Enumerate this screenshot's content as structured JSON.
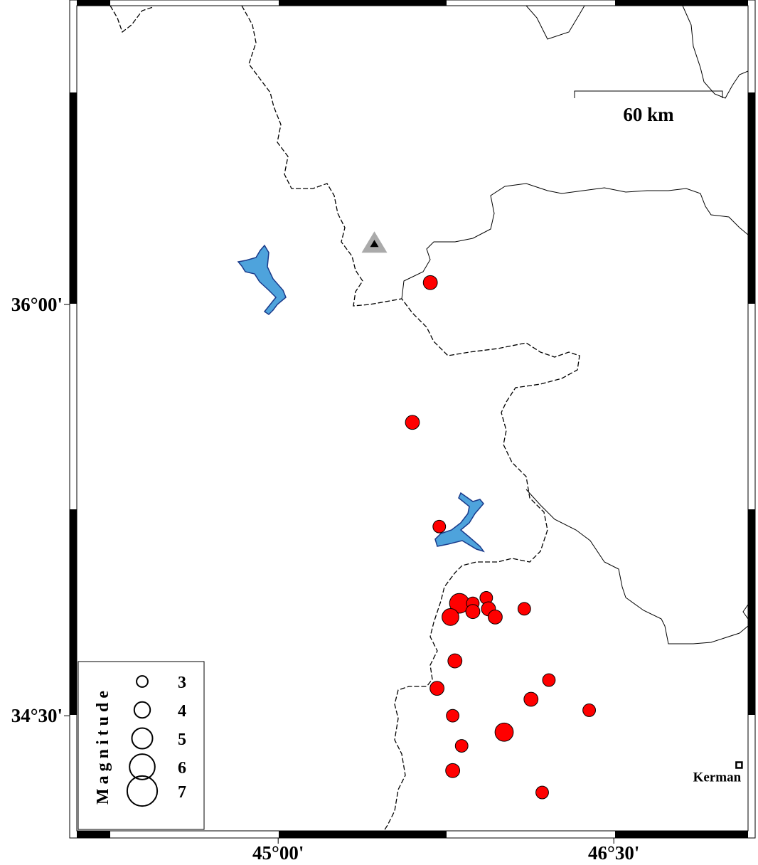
{
  "map": {
    "xlim": [
      44.1,
      47.1
    ],
    "ylim": [
      34.08,
      37.09
    ],
    "xticks": [
      {
        "value": 45,
        "label": "45°00'"
      },
      {
        "value": 46.5,
        "label": "46°30'"
      }
    ],
    "yticks": [
      {
        "value": 36,
        "label": "36°00'"
      },
      {
        "value": 34.5,
        "label": "34°30'"
      }
    ],
    "scale_bar": "60 km",
    "events": {
      "color": "#ff0000",
      "lon": [
        45.68,
        45.6,
        45.72,
        45.81,
        45.77,
        45.87,
        45.87,
        45.93,
        45.94,
        45.97,
        46.1,
        45.79,
        45.71,
        46.21,
        46.13,
        46.39,
        45.78,
        46.01,
        45.82,
        45.78,
        46.18
      ],
      "lat": [
        36.08,
        35.57,
        35.19,
        34.91,
        34.86,
        34.91,
        34.88,
        34.93,
        34.89,
        34.86,
        34.89,
        34.7,
        34.6,
        34.63,
        34.56,
        34.52,
        34.5,
        34.44,
        34.39,
        34.3,
        34.22
      ],
      "magnitude": [
        3.6,
        3.6,
        3.3,
        4.8,
        4.2,
        3.3,
        3.6,
        3.3,
        3.6,
        3.6,
        3.3,
        3.6,
        3.6,
        3.3,
        3.6,
        3.3,
        3.3,
        4.5,
        3.3,
        3.6,
        3.3
      ]
    },
    "station": {
      "lon": 45.43,
      "lat": 36.22
    },
    "places": [
      {
        "name": "Kerman",
        "lon": 47.06,
        "lat": 34.32
      }
    ],
    "legend": {
      "title": "Magnitude",
      "magnitudes": [
        3,
        4,
        5,
        6,
        7
      ]
    }
  }
}
